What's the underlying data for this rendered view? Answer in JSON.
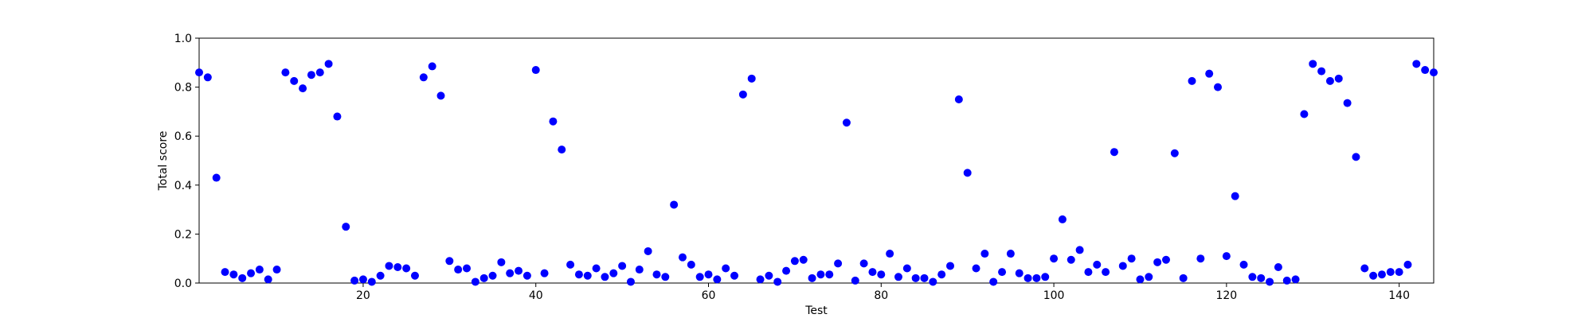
{
  "chart_data": {
    "type": "scatter",
    "xlabel": "Test",
    "ylabel": "Total score",
    "xlim": [
      1,
      144
    ],
    "ylim": [
      0.0,
      1.0
    ],
    "x_ticks": [
      20,
      40,
      60,
      80,
      100,
      120,
      140
    ],
    "x_tick_labels": [
      "20",
      "40",
      "60",
      "80",
      "100",
      "120",
      "140"
    ],
    "y_ticks": [
      0.0,
      0.2,
      0.4,
      0.6,
      0.8,
      1.0
    ],
    "y_tick_labels": [
      "0.0",
      "0.2",
      "0.4",
      "0.6",
      "0.8",
      "1.0"
    ],
    "grid": false,
    "marker_color": "#0000ff",
    "series": [
      {
        "x": [
          1,
          2,
          3,
          4,
          5,
          6,
          7,
          8,
          9,
          10,
          11,
          12,
          13,
          14,
          15,
          16,
          17,
          18,
          19,
          20,
          21,
          22,
          23,
          24,
          25,
          26,
          27,
          28,
          29,
          30,
          31,
          32,
          33,
          34,
          35,
          36,
          37,
          38,
          39,
          40,
          41,
          42,
          43,
          44,
          45,
          46,
          47,
          48,
          49,
          50,
          51,
          52,
          53,
          54,
          55,
          56,
          57,
          58,
          59,
          60,
          61,
          62,
          63,
          64,
          65,
          66,
          67,
          68,
          69,
          70,
          71,
          72,
          73,
          74,
          75,
          76,
          77,
          78,
          79,
          80,
          81,
          82,
          83,
          84,
          85,
          86,
          87,
          88,
          89,
          90,
          91,
          92,
          93,
          94,
          95,
          96,
          97,
          98,
          99,
          100,
          101,
          102,
          103,
          104,
          105,
          106,
          107,
          108,
          109,
          110,
          111,
          112,
          113,
          114,
          115,
          116,
          117,
          118,
          119,
          120,
          121,
          122,
          123,
          124,
          125,
          126,
          127,
          128,
          129,
          130,
          131,
          132,
          133,
          134,
          135,
          136,
          137,
          138,
          139,
          140,
          141,
          142,
          143,
          144
        ],
        "y": [
          0.86,
          0.84,
          0.43,
          0.045,
          0.035,
          0.02,
          0.04,
          0.055,
          0.015,
          0.055,
          0.86,
          0.825,
          0.795,
          0.85,
          0.86,
          0.895,
          0.68,
          0.23,
          0.01,
          0.015,
          0.005,
          0.03,
          0.07,
          0.065,
          0.06,
          0.03,
          0.84,
          0.885,
          0.765,
          0.09,
          0.055,
          0.06,
          0.005,
          0.02,
          0.03,
          0.085,
          0.04,
          0.05,
          0.03,
          0.87,
          0.04,
          0.66,
          0.545,
          0.075,
          0.035,
          0.03,
          0.06,
          0.025,
          0.04,
          0.07,
          0.005,
          0.055,
          0.13,
          0.035,
          0.025,
          0.32,
          0.105,
          0.075,
          0.025,
          0.035,
          0.015,
          0.06,
          0.03,
          0.77,
          0.835,
          0.015,
          0.03,
          0.005,
          0.05,
          0.09,
          0.095,
          0.02,
          0.035,
          0.035,
          0.08,
          0.655,
          0.01,
          0.08,
          0.045,
          0.035,
          0.12,
          0.025,
          0.06,
          0.02,
          0.02,
          0.005,
          0.035,
          0.07,
          0.75,
          0.45,
          0.06,
          0.12,
          0.005,
          0.045,
          0.12,
          0.04,
          0.02,
          0.02,
          0.025,
          0.1,
          0.26,
          0.095,
          0.135,
          0.045,
          0.075,
          0.045,
          0.535,
          0.07,
          0.1,
          0.015,
          0.025,
          0.085,
          0.095,
          0.53,
          0.02,
          0.825,
          0.1,
          0.855,
          0.8,
          0.11,
          0.355,
          0.075,
          0.025,
          0.02,
          0.005,
          0.065,
          0.01,
          0.015,
          0.69,
          0.895,
          0.865,
          0.825,
          0.835,
          0.735,
          0.515,
          0.06,
          0.03,
          0.035,
          0.045,
          0.045,
          0.075,
          0.895,
          0.87,
          0.86
        ]
      }
    ]
  }
}
